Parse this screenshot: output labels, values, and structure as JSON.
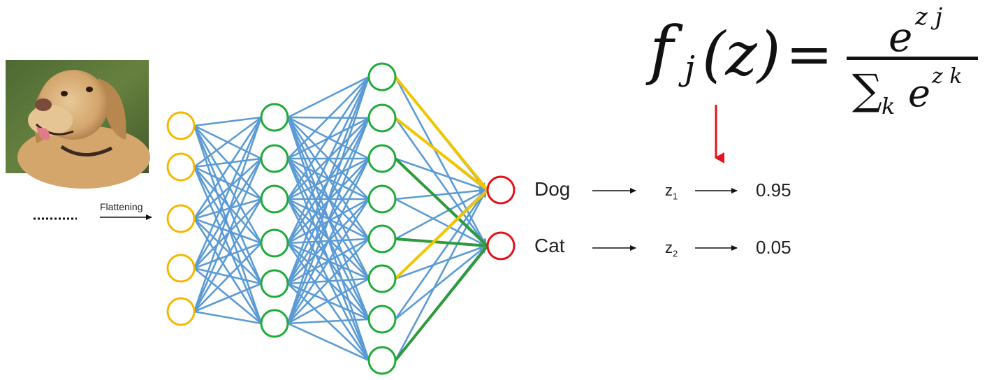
{
  "formula": {
    "lhs_f": "f",
    "lhs_sub": "j",
    "lhs_arg": "(z)",
    "equals": "=",
    "numerator_base": "e",
    "numerator_exp": "z j",
    "denominator_sum": "∑",
    "denominator_sub": "k",
    "denominator_base": "e",
    "denominator_exp": "z k"
  },
  "flatten_label": "Flattening",
  "network": {
    "layers": [
      5,
      6,
      8,
      2
    ],
    "colors": {
      "input": "#f5b800",
      "hidden": "#1faa3a",
      "output": "#e8101a",
      "edge": "#5b9bd5",
      "highlight_yellow": "#f2c500",
      "highlight_green": "#2e9a3a",
      "red_arrow": "#e8101a"
    }
  },
  "outputs": [
    {
      "class": "Dog",
      "z": "z",
      "z_sub": "1",
      "prob": "0.95"
    },
    {
      "class": "Cat",
      "z": "z",
      "z_sub": "2",
      "prob": "0.05"
    }
  ],
  "image": {
    "subject": "labrador-dog-photo"
  }
}
